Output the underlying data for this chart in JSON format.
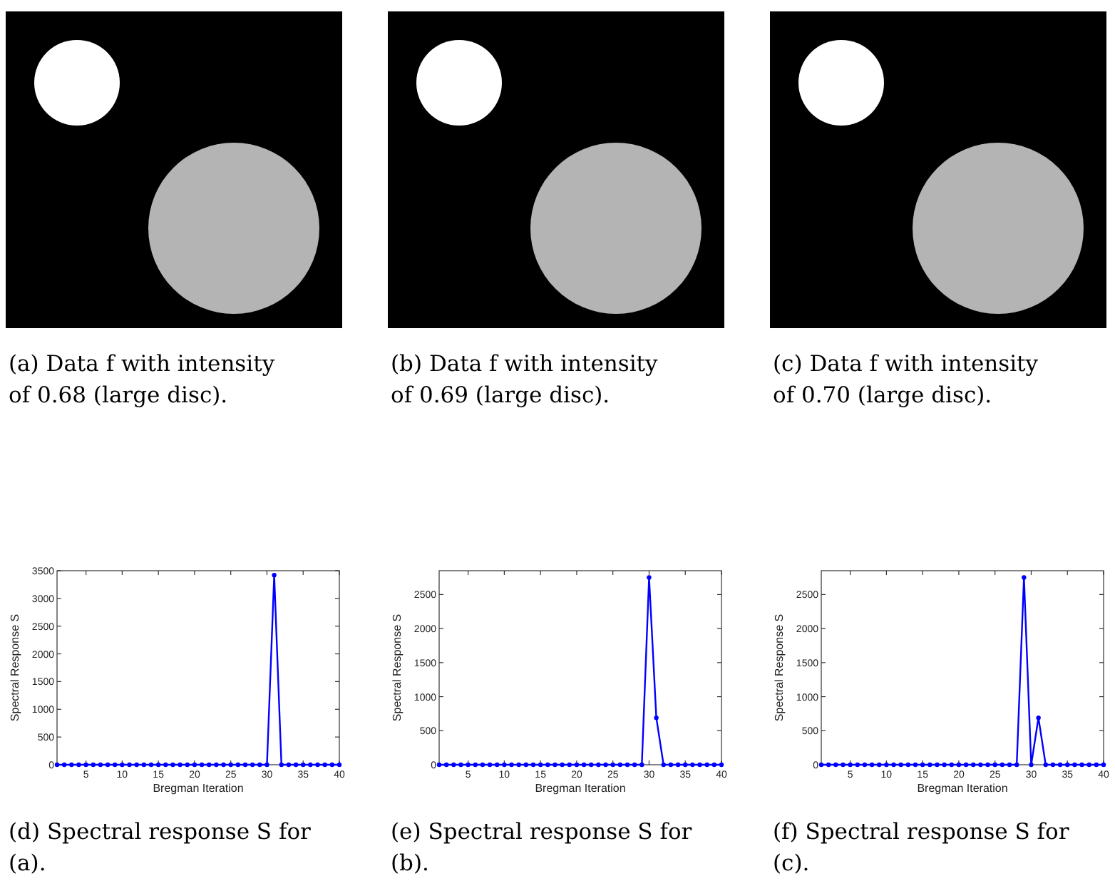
{
  "chart_data": [
    {
      "type": "other",
      "annotations": [
        "(a) Data f with intensity of 0.68 (large disc)."
      ]
    },
    {
      "type": "other",
      "annotations": [
        "(b) Data f with intensity of 0.69 (large disc)."
      ]
    },
    {
      "type": "other",
      "annotations": [
        "(c) Data f with intensity of 0.70 (large disc)."
      ]
    },
    {
      "type": "line",
      "xlabel": "Bregman Iteration",
      "ylabel": "Spectral Response S",
      "annotations": [
        "(d) Spectral response S for (a)."
      ],
      "x": [
        1,
        2,
        3,
        4,
        5,
        6,
        7,
        8,
        9,
        10,
        11,
        12,
        13,
        14,
        15,
        16,
        17,
        18,
        19,
        20,
        21,
        22,
        23,
        24,
        25,
        26,
        27,
        28,
        29,
        30,
        31,
        32,
        33,
        34,
        35,
        36,
        37,
        38,
        39,
        40
      ],
      "xlim": [
        1,
        40
      ],
      "xticks": [
        5,
        10,
        15,
        20,
        25,
        30,
        35,
        40
      ],
      "ylim": [
        0,
        3500
      ],
      "yticks": [
        0,
        500,
        1000,
        1500,
        2000,
        2500,
        3000,
        3500
      ],
      "marker": "circle",
      "grid": false,
      "series": [
        {
          "color": "#0000ff",
          "values": [
            0,
            0,
            0,
            0,
            0,
            0,
            0,
            0,
            0,
            0,
            0,
            0,
            0,
            0,
            0,
            0,
            0,
            0,
            0,
            0,
            0,
            0,
            0,
            0,
            0,
            0,
            0,
            0,
            0,
            0,
            3420,
            0,
            0,
            0,
            0,
            0,
            0,
            0,
            0,
            0
          ]
        }
      ]
    },
    {
      "type": "line",
      "xlabel": "Bregman Iteration",
      "ylabel": "Spectral Response S",
      "annotations": [
        "(e) Spectral response S for (b)."
      ],
      "x": [
        1,
        2,
        3,
        4,
        5,
        6,
        7,
        8,
        9,
        10,
        11,
        12,
        13,
        14,
        15,
        16,
        17,
        18,
        19,
        20,
        21,
        22,
        23,
        24,
        25,
        26,
        27,
        28,
        29,
        30,
        31,
        32,
        33,
        34,
        35,
        36,
        37,
        38,
        39,
        40
      ],
      "xlim": [
        1,
        40
      ],
      "xticks": [
        5,
        10,
        15,
        20,
        25,
        30,
        35,
        40
      ],
      "ylim": [
        0,
        2850
      ],
      "yticks": [
        0,
        500,
        1000,
        1500,
        2000,
        2500
      ],
      "marker": "circle",
      "grid": false,
      "series": [
        {
          "color": "#0000ff",
          "values": [
            0,
            0,
            0,
            0,
            0,
            0,
            0,
            0,
            0,
            0,
            0,
            0,
            0,
            0,
            0,
            0,
            0,
            0,
            0,
            0,
            0,
            0,
            0,
            0,
            0,
            0,
            0,
            0,
            0,
            2750,
            690,
            0,
            0,
            0,
            0,
            0,
            0,
            0,
            0,
            0
          ]
        }
      ]
    },
    {
      "type": "line",
      "xlabel": "Bregman Iteration",
      "ylabel": "Spectral Response S",
      "annotations": [
        "(f) Spectral response S for (c)."
      ],
      "x": [
        1,
        2,
        3,
        4,
        5,
        6,
        7,
        8,
        9,
        10,
        11,
        12,
        13,
        14,
        15,
        16,
        17,
        18,
        19,
        20,
        21,
        22,
        23,
        24,
        25,
        26,
        27,
        28,
        29,
        30,
        31,
        32,
        33,
        34,
        35,
        36,
        37,
        38,
        39,
        40
      ],
      "xlim": [
        1,
        40
      ],
      "xticks": [
        5,
        10,
        15,
        20,
        25,
        30,
        35,
        40
      ],
      "ylim": [
        0,
        2850
      ],
      "yticks": [
        0,
        500,
        1000,
        1500,
        2000,
        2500
      ],
      "marker": "circle",
      "grid": false,
      "series": [
        {
          "color": "#0000ff",
          "values": [
            0,
            0,
            0,
            0,
            0,
            0,
            0,
            0,
            0,
            0,
            0,
            0,
            0,
            0,
            0,
            0,
            0,
            0,
            0,
            0,
            0,
            0,
            0,
            0,
            0,
            0,
            0,
            0,
            2750,
            0,
            690,
            0,
            0,
            0,
            0,
            0,
            0,
            0,
            0,
            0
          ]
        }
      ]
    }
  ]
}
